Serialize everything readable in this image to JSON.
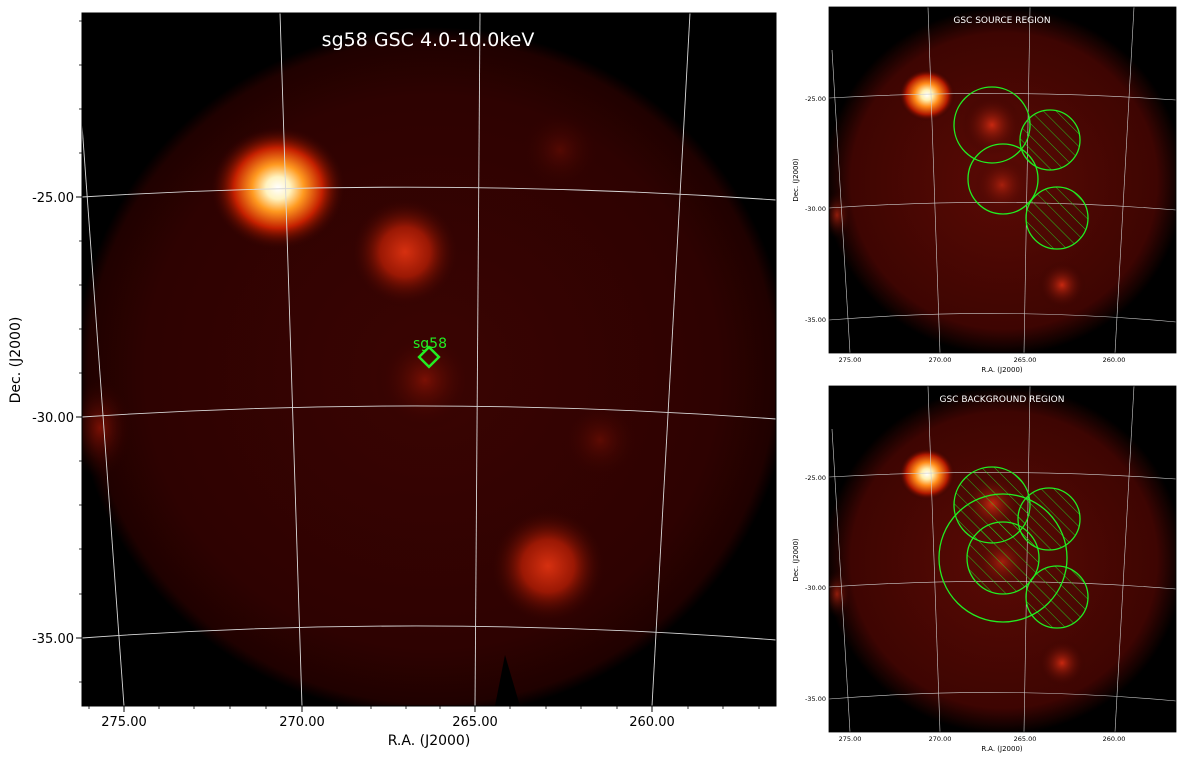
{
  "main": {
    "title": "sg58 GSC 4.0-10.0keV",
    "source_label": "sg58",
    "xlabel": "R.A. (J2000)",
    "ylabel": "Dec. (J2000)",
    "ra_ticks": [
      "275.00",
      "270.00",
      "265.00",
      "260.00"
    ],
    "dec_ticks": [
      "-25.00",
      "-30.00",
      "-35.00"
    ]
  },
  "source_panel": {
    "title": "GSC SOURCE REGION",
    "xlabel": "R.A. (J2000)",
    "ylabel": "Dec. (J2000)",
    "ra_ticks": [
      "275.00",
      "270.00",
      "265.00",
      "260.00"
    ],
    "dec_ticks": [
      "-25.00",
      "-30.00",
      "-35.00"
    ]
  },
  "background_panel": {
    "title": "GSC BACKGROUND REGION",
    "xlabel": "R.A. (J2000)",
    "ylabel": "Dec. (J2000)",
    "ra_ticks": [
      "275.00",
      "270.00",
      "265.00",
      "260.00"
    ],
    "dec_ticks": [
      "-25.00",
      "-30.00",
      "-35.00"
    ]
  },
  "colors": {
    "region": "#22ee22",
    "sky_dark": "#2a0100",
    "grid": "#d8d8d8"
  }
}
